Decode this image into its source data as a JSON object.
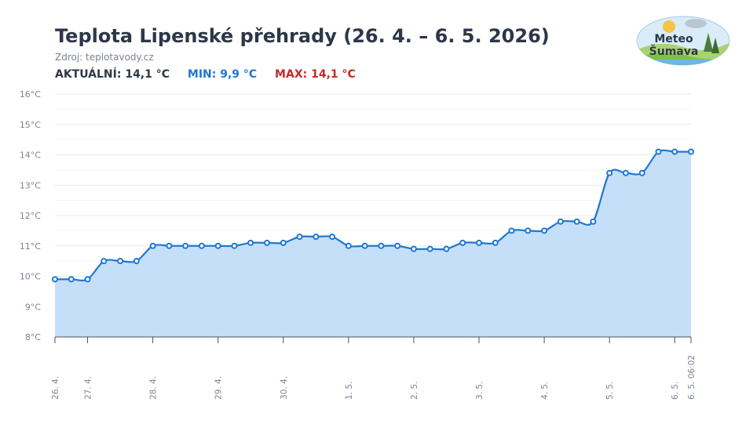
{
  "header": {
    "title": "Teplota Lipenské přehrady (26. 4. – 6. 5. 2026)",
    "source": "Zdroj: teplotavody.cz",
    "current": "AKTUÁLNÍ: 14,1 °C",
    "min": "MIN: 9,9 °C",
    "max": "MAX: 14,1 °C",
    "colors": {
      "current": "#2d3748",
      "min": "#1f78d1",
      "max": "#c62828"
    }
  },
  "logo": {
    "line1": "Meteo",
    "line2": "Šumava"
  },
  "chart_data": {
    "type": "area",
    "title": "Teplota Lipenské přehrady (26. 4. – 6. 5. 2026)",
    "ylim": [
      8,
      16
    ],
    "ytick_labels": [
      "8°C",
      "9°C",
      "10°C",
      "11°C",
      "12°C",
      "13°C",
      "14°C",
      "15°C",
      "16°C"
    ],
    "x_range": [
      0,
      39
    ],
    "x_ticks": [
      {
        "x": 0,
        "label": "26. 4."
      },
      {
        "x": 2,
        "label": "27. 4."
      },
      {
        "x": 6,
        "label": "28. 4."
      },
      {
        "x": 10,
        "label": "29. 4."
      },
      {
        "x": 14,
        "label": "30. 4."
      },
      {
        "x": 18,
        "label": "1. 5."
      },
      {
        "x": 22,
        "label": "2. 5."
      },
      {
        "x": 26,
        "label": "3. 5."
      },
      {
        "x": 30,
        "label": "4. 5."
      },
      {
        "x": 34,
        "label": "5. 5."
      },
      {
        "x": 38,
        "label": "6. 5."
      },
      {
        "x": 39,
        "label": "6. 5. 06:02"
      }
    ],
    "series": [
      {
        "color": "#1f78d1",
        "fill": "#c6dff8",
        "points": [
          [
            0,
            9.9
          ],
          [
            1,
            9.9
          ],
          [
            2,
            9.9
          ],
          [
            3,
            10.5
          ],
          [
            4,
            10.5
          ],
          [
            5,
            10.5
          ],
          [
            6,
            11.0
          ],
          [
            7,
            11.0
          ],
          [
            8,
            11.0
          ],
          [
            9,
            11.0
          ],
          [
            10,
            11.0
          ],
          [
            11,
            11.0
          ],
          [
            12,
            11.1
          ],
          [
            13,
            11.1
          ],
          [
            14,
            11.1
          ],
          [
            15,
            11.3
          ],
          [
            16,
            11.3
          ],
          [
            17,
            11.3
          ],
          [
            18,
            11.0
          ],
          [
            19,
            11.0
          ],
          [
            20,
            11.0
          ],
          [
            21,
            11.0
          ],
          [
            22,
            10.9
          ],
          [
            23,
            10.9
          ],
          [
            24,
            10.9
          ],
          [
            25,
            11.1
          ],
          [
            26,
            11.1
          ],
          [
            27,
            11.1
          ],
          [
            28,
            11.5
          ],
          [
            29,
            11.5
          ],
          [
            30,
            11.5
          ],
          [
            31,
            11.8
          ],
          [
            32,
            11.8
          ],
          [
            33,
            11.8
          ],
          [
            34,
            13.4
          ],
          [
            35,
            13.4
          ],
          [
            36,
            13.4
          ],
          [
            37,
            14.1
          ],
          [
            38,
            14.1
          ],
          [
            39,
            14.1
          ]
        ]
      }
    ],
    "grid": true,
    "legend": "none"
  }
}
